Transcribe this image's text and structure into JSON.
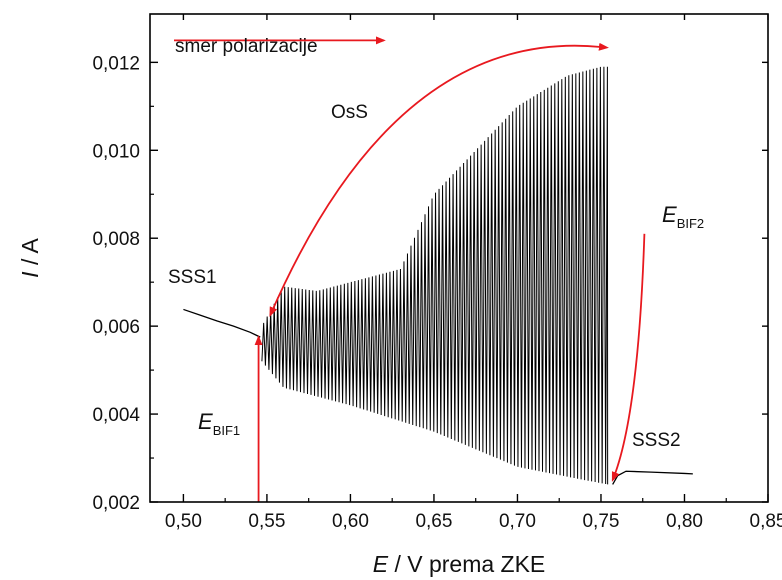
{
  "chart_data": {
    "type": "line",
    "xlabel_var": "E",
    "xlabel_rest": " / V prema ZKE",
    "ylabel_var": "I",
    "ylabel_rest": " / A",
    "xlim": [
      0.48,
      0.85
    ],
    "ylim": [
      0.002,
      0.0131
    ],
    "x_ticks": [
      0.5,
      0.55,
      0.6,
      0.65,
      0.7,
      0.75,
      0.8,
      0.85
    ],
    "x_tick_labels": [
      "0,50",
      "0,55",
      "0,60",
      "0,65",
      "0,70",
      "0,75",
      "0,80",
      "0,85"
    ],
    "y_ticks": [
      0.002,
      0.004,
      0.006,
      0.008,
      0.01,
      0.012
    ],
    "y_tick_labels": [
      "0,002",
      "0,004",
      "0,006",
      "0,008",
      "0,010",
      "0,012"
    ],
    "grid": false,
    "series_color": "#000000",
    "annotation_color": "#e8191f",
    "segments": {
      "sss1": {
        "x": [
          0.5,
          0.51,
          0.52,
          0.53,
          0.54,
          0.546
        ],
        "y": [
          0.00638,
          0.00625,
          0.00612,
          0.006,
          0.00586,
          0.00575
        ]
      },
      "oscillation": {
        "x_start": 0.547,
        "x_end": 0.754,
        "period": 0.0021,
        "upper_envelope": {
          "x": [
            0.547,
            0.56,
            0.58,
            0.6,
            0.63,
            0.65,
            0.7,
            0.73,
            0.75,
            0.754
          ],
          "y": [
            0.006,
            0.0069,
            0.0068,
            0.007,
            0.0073,
            0.009,
            0.011,
            0.0117,
            0.0119,
            0.0119
          ]
        },
        "lower_envelope": {
          "x": [
            0.547,
            0.56,
            0.6,
            0.65,
            0.7,
            0.74,
            0.754
          ],
          "y": [
            0.0052,
            0.0046,
            0.0042,
            0.0036,
            0.0028,
            0.0025,
            0.0024
          ]
        }
      },
      "sss2": {
        "x": [
          0.757,
          0.76,
          0.765,
          0.78,
          0.8,
          0.805
        ],
        "y": [
          0.0024,
          0.0026,
          0.0027,
          0.00268,
          0.00265,
          0.00264
        ]
      }
    },
    "annotations": {
      "direction": "smer polarizacije",
      "oss": "OsS",
      "sss1": "SSS1",
      "sss2": "SSS2",
      "ebif1_main": "E",
      "ebif1_sub": "BIF1",
      "ebif2_main": "E",
      "ebif2_sub": "BIF2"
    },
    "arrows": {
      "direction": {
        "from": [
          0.48,
          0.0125
        ],
        "to": [
          0.62,
          0.0125
        ]
      },
      "oss": {
        "from": [
          0.552,
          0.00625
        ],
        "to": [
          0.75,
          0.01235
        ]
      },
      "ebif1": {
        "from": [
          0.545,
          0.002
        ],
        "to": [
          0.545,
          0.00575
        ]
      },
      "ebif2": {
        "from": [
          0.776,
          0.0081
        ],
        "to": [
          0.757,
          0.0025
        ]
      }
    }
  }
}
